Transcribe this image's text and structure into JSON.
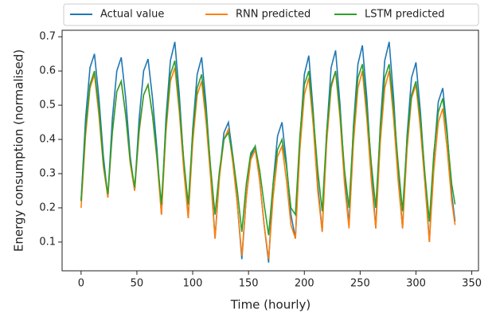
{
  "chart_data": {
    "type": "line",
    "xlabel": "Time (hourly)",
    "ylabel": "Energy consumption (normalised)",
    "x": [
      0,
      4,
      8,
      12,
      16,
      20,
      24,
      28,
      32,
      36,
      40,
      44,
      48,
      52,
      56,
      60,
      64,
      68,
      72,
      76,
      80,
      84,
      88,
      92,
      96,
      100,
      104,
      108,
      112,
      116,
      120,
      124,
      128,
      132,
      136,
      140,
      144,
      148,
      152,
      156,
      160,
      164,
      168,
      172,
      176,
      180,
      184,
      188,
      192,
      196,
      200,
      204,
      208,
      212,
      216,
      220,
      224,
      228,
      232,
      236,
      240,
      244,
      248,
      252,
      256,
      260,
      264,
      268,
      272,
      276,
      280,
      284,
      288,
      292,
      296,
      300,
      304,
      308,
      312,
      316,
      320,
      324,
      328,
      332,
      335
    ],
    "series": [
      {
        "name": "Actual value",
        "color": "#1f77b4",
        "values": [
          0.22,
          0.46,
          0.61,
          0.65,
          0.52,
          0.35,
          0.23,
          0.46,
          0.6,
          0.64,
          0.52,
          0.35,
          0.25,
          0.46,
          0.6,
          0.635,
          0.52,
          0.37,
          0.18,
          0.46,
          0.63,
          0.685,
          0.53,
          0.33,
          0.17,
          0.43,
          0.59,
          0.64,
          0.5,
          0.31,
          0.11,
          0.3,
          0.42,
          0.45,
          0.35,
          0.21,
          0.05,
          0.23,
          0.35,
          0.38,
          0.28,
          0.15,
          0.04,
          0.27,
          0.41,
          0.45,
          0.33,
          0.18,
          0.11,
          0.4,
          0.59,
          0.645,
          0.48,
          0.27,
          0.13,
          0.42,
          0.61,
          0.66,
          0.5,
          0.29,
          0.15,
          0.44,
          0.62,
          0.675,
          0.52,
          0.31,
          0.14,
          0.44,
          0.63,
          0.685,
          0.52,
          0.3,
          0.14,
          0.41,
          0.58,
          0.625,
          0.48,
          0.29,
          0.1,
          0.35,
          0.51,
          0.55,
          0.42,
          0.24,
          0.16
        ]
      },
      {
        "name": "RNN predicted",
        "color": "#ff7f0e",
        "values": [
          0.2,
          0.41,
          0.55,
          0.59,
          0.47,
          0.32,
          0.23,
          0.42,
          0.54,
          0.57,
          0.47,
          0.33,
          0.25,
          0.42,
          0.53,
          0.56,
          0.47,
          0.34,
          0.18,
          0.42,
          0.57,
          0.61,
          0.48,
          0.31,
          0.17,
          0.39,
          0.53,
          0.57,
          0.45,
          0.29,
          0.11,
          0.29,
          0.4,
          0.43,
          0.33,
          0.21,
          0.06,
          0.23,
          0.34,
          0.37,
          0.28,
          0.15,
          0.05,
          0.23,
          0.35,
          0.38,
          0.28,
          0.15,
          0.11,
          0.37,
          0.53,
          0.58,
          0.44,
          0.25,
          0.13,
          0.39,
          0.55,
          0.6,
          0.46,
          0.27,
          0.14,
          0.39,
          0.55,
          0.6,
          0.46,
          0.28,
          0.14,
          0.39,
          0.55,
          0.6,
          0.46,
          0.28,
          0.14,
          0.37,
          0.52,
          0.56,
          0.43,
          0.27,
          0.1,
          0.31,
          0.45,
          0.49,
          0.37,
          0.22,
          0.15
        ]
      },
      {
        "name": "LSTM predicted",
        "color": "#2ca02c",
        "values": [
          0.22,
          0.43,
          0.56,
          0.6,
          0.49,
          0.33,
          0.24,
          0.42,
          0.54,
          0.57,
          0.47,
          0.34,
          0.26,
          0.43,
          0.53,
          0.56,
          0.47,
          0.35,
          0.21,
          0.44,
          0.59,
          0.63,
          0.5,
          0.34,
          0.21,
          0.42,
          0.55,
          0.59,
          0.48,
          0.32,
          0.18,
          0.31,
          0.4,
          0.42,
          0.35,
          0.25,
          0.13,
          0.27,
          0.36,
          0.38,
          0.31,
          0.21,
          0.12,
          0.27,
          0.37,
          0.4,
          0.32,
          0.2,
          0.18,
          0.41,
          0.56,
          0.6,
          0.47,
          0.31,
          0.19,
          0.42,
          0.56,
          0.6,
          0.48,
          0.31,
          0.2,
          0.43,
          0.58,
          0.62,
          0.49,
          0.33,
          0.2,
          0.43,
          0.58,
          0.62,
          0.49,
          0.33,
          0.19,
          0.4,
          0.53,
          0.57,
          0.46,
          0.3,
          0.16,
          0.36,
          0.48,
          0.52,
          0.41,
          0.27,
          0.21
        ]
      }
    ],
    "xlim": [
      -17,
      356
    ],
    "xticks": [
      0,
      50,
      100,
      150,
      200,
      250,
      300,
      350
    ],
    "ylim": [
      0.016,
      0.719
    ],
    "yticks": [
      0.1,
      0.2,
      0.3,
      0.4,
      0.5,
      0.6,
      0.7
    ],
    "grid": false,
    "legend": "top"
  }
}
